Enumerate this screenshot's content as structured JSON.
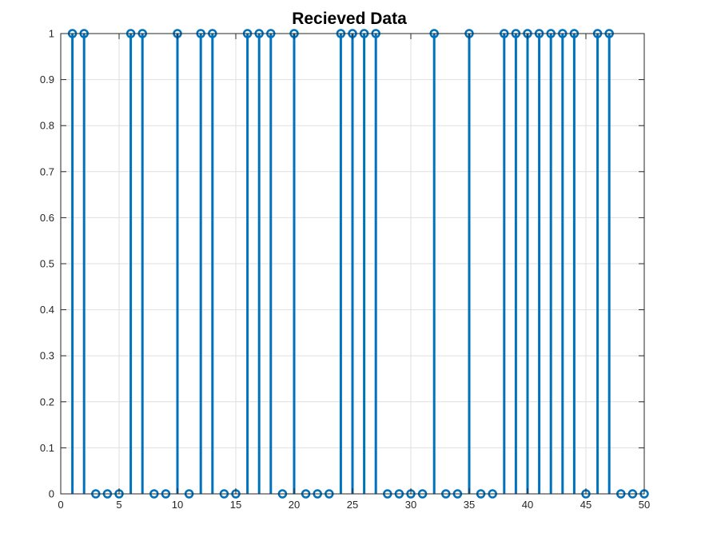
{
  "chart_data": {
    "type": "stem",
    "title": "Recieved Data",
    "xlabel": "",
    "ylabel": "",
    "xlim": [
      0,
      50
    ],
    "ylim": [
      0,
      1
    ],
    "grid": true,
    "xticks": [
      0,
      5,
      10,
      15,
      20,
      25,
      30,
      35,
      40,
      45,
      50
    ],
    "yticks": [
      0,
      0.1,
      0.2,
      0.3,
      0.4,
      0.5,
      0.6,
      0.7,
      0.8,
      0.9,
      1
    ],
    "x": [
      1,
      2,
      3,
      4,
      5,
      6,
      7,
      8,
      9,
      10,
      11,
      12,
      13,
      14,
      15,
      16,
      17,
      18,
      19,
      20,
      21,
      22,
      23,
      24,
      25,
      26,
      27,
      28,
      29,
      30,
      31,
      32,
      33,
      34,
      35,
      36,
      37,
      38,
      39,
      40,
      41,
      42,
      43,
      44,
      45,
      46,
      47,
      48,
      49,
      50
    ],
    "values": [
      1,
      1,
      0,
      0,
      0,
      1,
      1,
      0,
      0,
      1,
      0,
      1,
      1,
      0,
      0,
      1,
      1,
      1,
      0,
      1,
      0,
      0,
      0,
      1,
      1,
      1,
      1,
      0,
      0,
      0,
      0,
      1,
      0,
      0,
      1,
      0,
      0,
      1,
      1,
      1,
      1,
      1,
      1,
      1,
      0,
      1,
      1,
      0,
      0,
      0
    ],
    "color": "#0072BD",
    "marker": "circle"
  }
}
